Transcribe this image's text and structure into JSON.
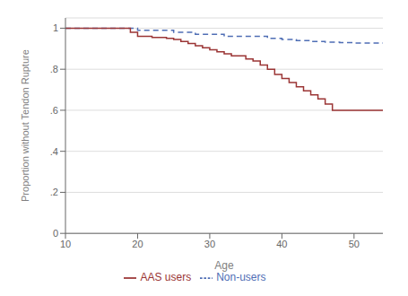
{
  "chart_data": {
    "type": "step",
    "xlabel": "Age",
    "ylabel": "Proportion without Tendon Rupture",
    "xlim": [
      10,
      54
    ],
    "ylim": [
      0,
      1.05
    ],
    "xticks": [
      10,
      20,
      30,
      40,
      50
    ],
    "yticks": [
      0,
      {
        "value": 0.2,
        "label": ".2"
      },
      {
        "value": 0.4,
        "label": ".4"
      },
      {
        "value": 0.6,
        "label": ".6"
      },
      {
        "value": 0.8,
        "label": ".8"
      },
      1
    ],
    "grid": "y",
    "legend": "bottom",
    "series": [
      {
        "name": "Non-users",
        "color": "#4f6eb5",
        "line_style": "dashed",
        "x": [
          10,
          19,
          20,
          22,
          25,
          28,
          30,
          32,
          35,
          38,
          40,
          42,
          44,
          46,
          48,
          50,
          54
        ],
        "values": [
          1.0,
          1.0,
          0.99,
          0.99,
          0.98,
          0.97,
          0.97,
          0.96,
          0.96,
          0.95,
          0.945,
          0.94,
          0.935,
          0.932,
          0.93,
          0.928,
          0.928
        ]
      },
      {
        "name": "AAS users",
        "color": "#9b3535",
        "line_style": "solid",
        "x": [
          10,
          19,
          20,
          22,
          24,
          25,
          26,
          27,
          28,
          29,
          30,
          31,
          32,
          33,
          35,
          36,
          37,
          38,
          39,
          40,
          41,
          42,
          43,
          44,
          45,
          46,
          47,
          48,
          54
        ],
        "values": [
          1.0,
          0.98,
          0.96,
          0.955,
          0.95,
          0.945,
          0.935,
          0.925,
          0.915,
          0.905,
          0.895,
          0.885,
          0.875,
          0.865,
          0.85,
          0.84,
          0.82,
          0.8,
          0.775,
          0.755,
          0.735,
          0.715,
          0.695,
          0.675,
          0.655,
          0.63,
          0.6,
          0.6,
          0.6
        ]
      }
    ]
  }
}
